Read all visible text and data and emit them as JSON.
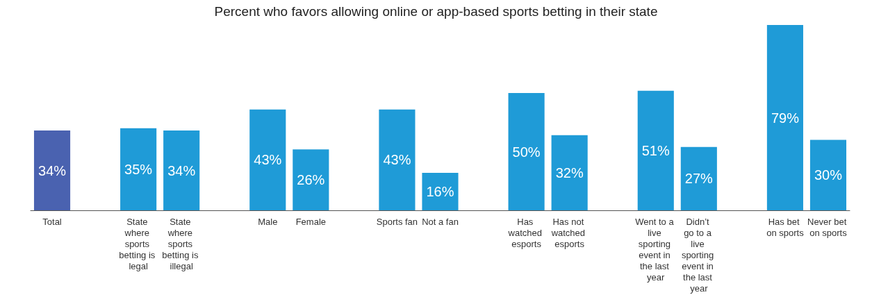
{
  "chart_data": {
    "type": "bar",
    "title": "Percent who favors allowing online or app-based sports betting in their state",
    "categories": [
      "Total",
      null,
      "State where sports betting is legal",
      "State where sports betting is illegal",
      null,
      "Male",
      "Female",
      null,
      "Sports fan",
      "Not a fan",
      null,
      "Has watched esports",
      "Has not watched esports",
      null,
      "Went to a live sporting event in the last year",
      "Didn’t go to a live sporting event in the last year",
      null,
      "Has bet on sports",
      "Never bet on sports"
    ],
    "values": [
      34,
      null,
      35,
      34,
      null,
      43,
      26,
      null,
      43,
      16,
      null,
      50,
      32,
      null,
      51,
      27,
      null,
      79,
      30
    ],
    "colors": [
      "#4a62b0",
      null,
      "#1f9bd7",
      "#1f9bd7",
      null,
      "#1f9bd7",
      "#1f9bd7",
      null,
      "#1f9bd7",
      "#1f9bd7",
      null,
      "#1f9bd7",
      "#1f9bd7",
      null,
      "#1f9bd7",
      "#1f9bd7",
      null,
      "#1f9bd7",
      "#1f9bd7"
    ],
    "value_labels": [
      "34%",
      null,
      "35%",
      "34%",
      null,
      "43%",
      "26%",
      null,
      "43%",
      "16%",
      null,
      "50%",
      "32%",
      null,
      "51%",
      "27%",
      null,
      "79%",
      "30%"
    ],
    "grid": false
  }
}
